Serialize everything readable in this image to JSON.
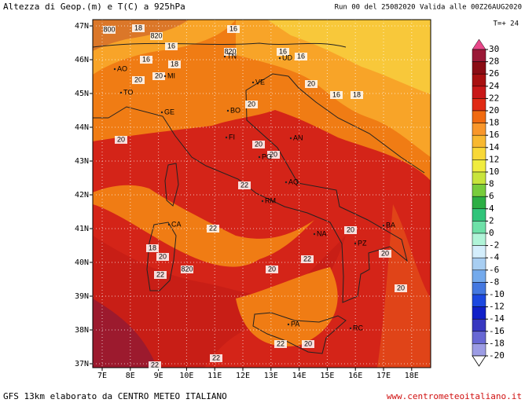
{
  "header": {
    "title": "Altezza di Geop.(m) e T(C) a 925hPa",
    "run": "Run 00 del 25082020  Valida alle 00Z26AUG2020",
    "step": "T=+ 24"
  },
  "map": {
    "lat_labels": [
      "47N",
      "46N",
      "45N",
      "44N",
      "43N",
      "42N",
      "41N",
      "40N",
      "39N",
      "38N",
      "37N"
    ],
    "lon_labels": [
      "7E",
      "8E",
      "9E",
      "10E",
      "11E",
      "12E",
      "13E",
      "14E",
      "15E",
      "16E",
      "17E",
      "18E"
    ],
    "contour_labels": [
      800,
      18,
      820,
      16,
      16,
      820,
      16,
      18,
      20,
      20,
      16,
      16,
      20,
      16,
      18,
      20,
      20,
      20,
      20,
      22,
      22,
      20,
      18,
      20,
      820,
      22,
      20,
      22,
      20,
      20,
      22,
      20,
      22,
      22
    ],
    "city_labels": [
      "AO",
      "TO",
      "MI",
      "TN",
      "UD",
      "VE",
      "GE",
      "BO",
      "FI",
      "AN",
      "PG",
      "AQ",
      "RM",
      "CA",
      "NA",
      "BA",
      "PZ",
      "PA",
      "RC"
    ]
  },
  "colorbar": {
    "levels": [
      30,
      28,
      26,
      24,
      22,
      20,
      18,
      16,
      14,
      12,
      10,
      8,
      6,
      4,
      2,
      0,
      -2,
      -4,
      -6,
      -8,
      -10,
      -12,
      -14,
      -16,
      -18,
      -20
    ],
    "colors": [
      "#9a1836",
      "#8a0c14",
      "#a81010",
      "#c81818",
      "#e02a14",
      "#f06a10",
      "#f8962a",
      "#f8b830",
      "#f8d838",
      "#f0ec40",
      "#c8e43c",
      "#78cc3c",
      "#2cae44",
      "#30c47a",
      "#6ee0a8",
      "#b0f4d8",
      "#d4eefc",
      "#a8cef2",
      "#74aaec",
      "#4478e0",
      "#1c48e0",
      "#1020c8",
      "#3838c0",
      "#6868d4",
      "#9c9ce4"
    ]
  },
  "footer": {
    "model": "GFS 13km elaborato da CENTRO METEO ITALIANO",
    "site": "www.centrometeoitaliano.it"
  }
}
